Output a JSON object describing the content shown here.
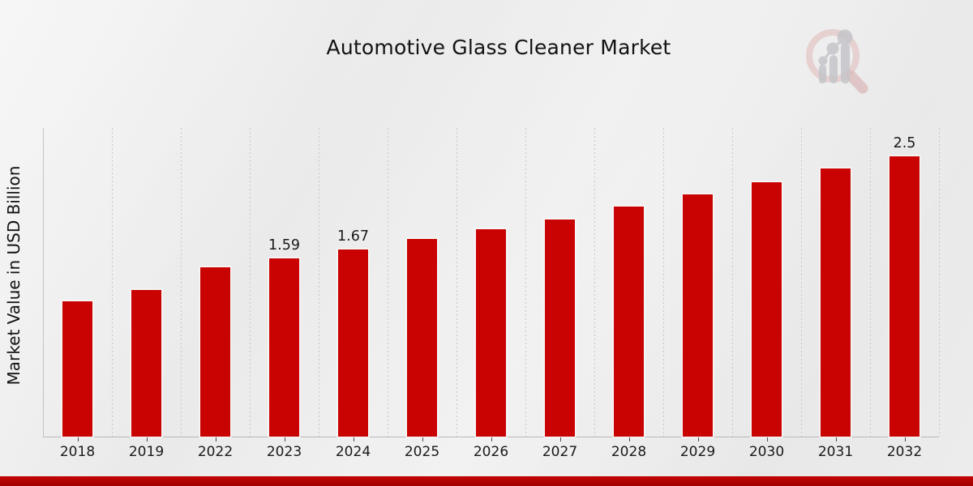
{
  "title": "Automotive Glass Cleaner Market",
  "y_axis_label": "Market Value in USD Billion",
  "colors": {
    "bar": "#C90301",
    "footer_strip": "#B00303",
    "background": "#EBEBEB",
    "gridline": "#C7C7C7",
    "text": "#121212",
    "logo_ring_pink": "#E3C5C5",
    "logo_gray": "#C5C5CA"
  },
  "logo_name": "market-research-future-watermark",
  "chart_data": {
    "type": "bar",
    "title": "Automotive Glass Cleaner Market",
    "xlabel": "",
    "ylabel": "Market Value in USD Billion",
    "categories": [
      "2018",
      "2019",
      "2022",
      "2023",
      "2024",
      "2025",
      "2026",
      "2027",
      "2028",
      "2029",
      "2030",
      "2031",
      "2032"
    ],
    "values": [
      1.21,
      1.31,
      1.51,
      1.59,
      1.67,
      1.76,
      1.85,
      1.94,
      2.05,
      2.16,
      2.27,
      2.39,
      2.5
    ],
    "value_labels_shown": {
      "2023": "1.59",
      "2024": "1.67",
      "2032": "2.5"
    },
    "ylim": [
      0,
      2.75
    ],
    "grid": "vertical-dashed",
    "legend": "none",
    "bar_color": "#C90301",
    "unit": "USD Billion"
  }
}
